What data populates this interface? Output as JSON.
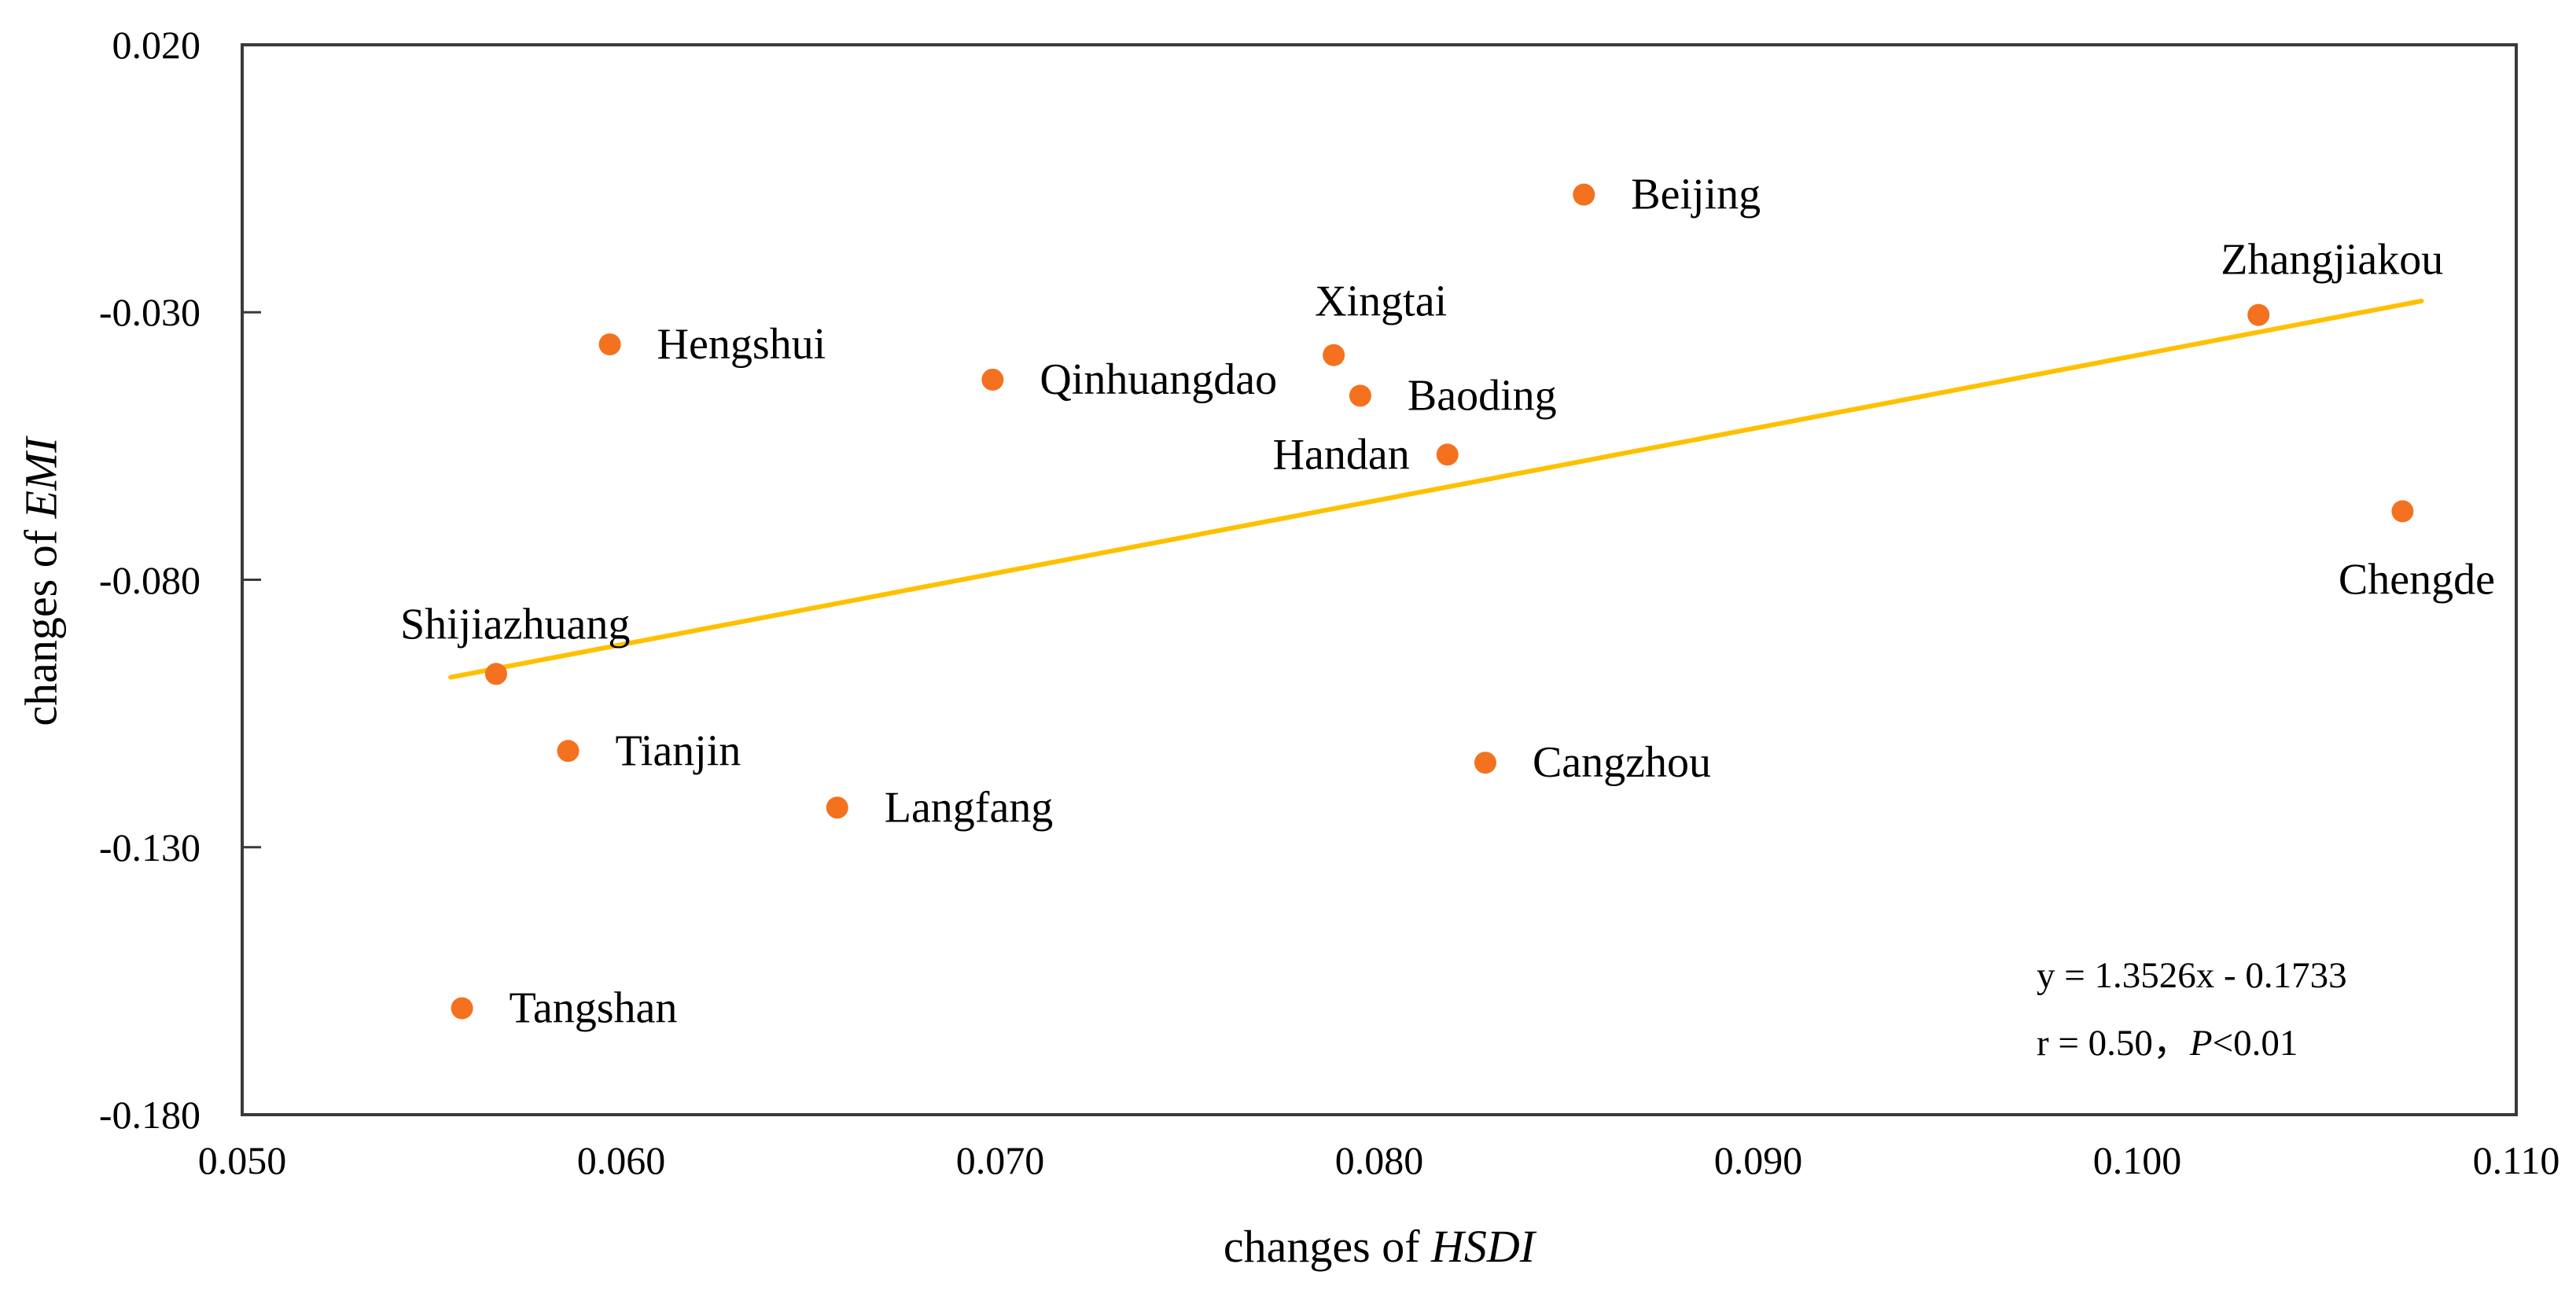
{
  "chart_data": {
    "type": "scatter",
    "title": "",
    "xlabel": "changes of HSDI",
    "xlabel_prefix": "changes of ",
    "xlabel_italic": "HSDI",
    "ylabel": "changes of EMI",
    "ylabel_prefix": "changes of ",
    "ylabel_italic": "EMI",
    "xlim": [
      0.05,
      0.11
    ],
    "ylim": [
      -0.18,
      0.02
    ],
    "x_tick_values": [
      0.05,
      0.06,
      0.07,
      0.08,
      0.09,
      0.1,
      0.11
    ],
    "x_ticks": [
      "0.050",
      "0.060",
      "0.070",
      "0.080",
      "0.090",
      "0.100",
      "0.110"
    ],
    "y_tick_values": [
      0.02,
      -0.03,
      -0.08,
      -0.13,
      -0.18
    ],
    "y_ticks": [
      "0.020",
      "-0.030",
      "-0.080",
      "-0.130",
      "-0.180"
    ],
    "grid": false,
    "legend": false,
    "marker_color": "#F4711F",
    "frame_color": "#3A3A3A",
    "points": [
      {
        "city": "Beijing",
        "x": 0.0854,
        "y": -0.008,
        "label_position": "right"
      },
      {
        "city": "Zhangjiakou",
        "x": 0.1032,
        "y": -0.0305,
        "label_position": "above-right"
      },
      {
        "city": "Hengshui",
        "x": 0.0597,
        "y": -0.036,
        "label_position": "right"
      },
      {
        "city": "Xingtai",
        "x": 0.0788,
        "y": -0.038,
        "label_position": "above"
      },
      {
        "city": "Qinhuangdao",
        "x": 0.0698,
        "y": -0.0426,
        "label_position": "right"
      },
      {
        "city": "Baoding",
        "x": 0.0795,
        "y": -0.0456,
        "label_position": "right"
      },
      {
        "city": "Handan",
        "x": 0.0818,
        "y": -0.0566,
        "label_position": "left"
      },
      {
        "city": "Chengde",
        "x": 0.107,
        "y": -0.0672,
        "label_position": "below"
      },
      {
        "city": "Shijiazhuang",
        "x": 0.0567,
        "y": -0.0976,
        "label_position": "above-left"
      },
      {
        "city": "Tianjin",
        "x": 0.0586,
        "y": -0.112,
        "label_position": "right"
      },
      {
        "city": "Cangzhou",
        "x": 0.0828,
        "y": -0.1142,
        "label_position": "right"
      },
      {
        "city": "Langfang",
        "x": 0.0657,
        "y": -0.1226,
        "label_position": "right"
      },
      {
        "city": "Tangshan",
        "x": 0.0558,
        "y": -0.1601,
        "label_position": "right"
      }
    ],
    "trendline": {
      "slope": 1.3526,
      "intercept": -0.1733,
      "x_start": 0.0555,
      "x_end": 0.1075,
      "color": "#FFC000"
    },
    "annotation": {
      "equation": "y = 1.3526x - 0.1733",
      "stats_prefix": "r = 0.50，",
      "stats_italic": "P",
      "stats_suffix": "<0.01"
    }
  }
}
